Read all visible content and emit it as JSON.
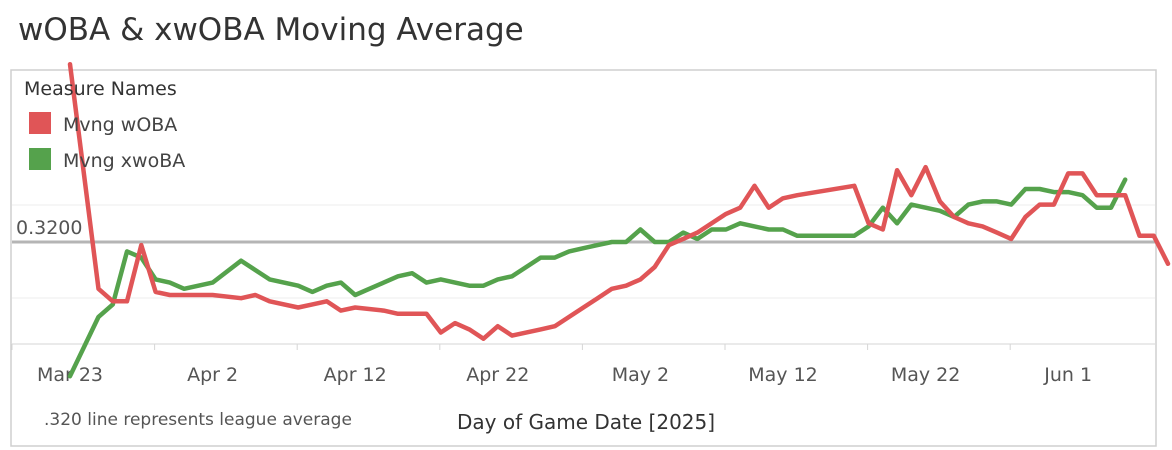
{
  "title": "wOBA & xwOBA Moving Average",
  "legend": {
    "heading": "Measure Names",
    "items": [
      {
        "label": "Mvng wOBA",
        "color": "#e05557"
      },
      {
        "label": "Mvng xwoBA",
        "color": "#55a24c"
      }
    ]
  },
  "reference": {
    "label": "0.3200",
    "value": 0.32
  },
  "footnote": ".320 line represents league average",
  "chart_data": {
    "type": "line",
    "title": "wOBA & xwOBA Moving Average",
    "xlabel": "Day of Game Date [2025]",
    "ylabel": "",
    "x_ticks": [
      "Mar 23",
      "Apr 2",
      "Apr 12",
      "Apr 22",
      "May 2",
      "May 12",
      "May 22",
      "Jun 1"
    ],
    "ylim": [
      0.2692,
      0.3877
    ],
    "reference_line": 0.32,
    "grid": "horizontal",
    "legend_position": "top-left",
    "series": [
      {
        "name": "Mvng wOBA",
        "color": "#e05557",
        "points": [
          [
            "2025-03-23",
            0.377
          ],
          [
            "2025-03-25",
            0.305
          ],
          [
            "2025-03-26",
            0.301
          ],
          [
            "2025-03-27",
            0.301
          ],
          [
            "2025-03-28",
            0.319
          ],
          [
            "2025-03-29",
            0.304
          ],
          [
            "2025-03-30",
            0.303
          ],
          [
            "2025-03-31",
            0.303
          ],
          [
            "2025-04-02",
            0.303
          ],
          [
            "2025-04-04",
            0.302
          ],
          [
            "2025-04-05",
            0.303
          ],
          [
            "2025-04-06",
            0.301
          ],
          [
            "2025-04-08",
            0.299
          ],
          [
            "2025-04-09",
            0.3
          ],
          [
            "2025-04-10",
            0.301
          ],
          [
            "2025-04-11",
            0.298
          ],
          [
            "2025-04-12",
            0.299
          ],
          [
            "2025-04-14",
            0.298
          ],
          [
            "2025-04-15",
            0.297
          ],
          [
            "2025-04-16",
            0.297
          ],
          [
            "2025-04-17",
            0.297
          ],
          [
            "2025-04-18",
            0.291
          ],
          [
            "2025-04-19",
            0.294
          ],
          [
            "2025-04-20",
            0.292
          ],
          [
            "2025-04-21",
            0.289
          ],
          [
            "2025-04-22",
            0.293
          ],
          [
            "2025-04-23",
            0.29
          ],
          [
            "2025-04-25",
            0.292
          ],
          [
            "2025-04-26",
            0.293
          ],
          [
            "2025-04-27",
            0.296
          ],
          [
            "2025-04-28",
            0.299
          ],
          [
            "2025-04-29",
            0.302
          ],
          [
            "2025-04-30",
            0.305
          ],
          [
            "2025-05-01",
            0.306
          ],
          [
            "2025-05-02",
            0.308
          ],
          [
            "2025-05-03",
            0.312
          ],
          [
            "2025-05-04",
            0.319
          ],
          [
            "2025-05-05",
            0.321
          ],
          [
            "2025-05-06",
            0.323
          ],
          [
            "2025-05-07",
            0.326
          ],
          [
            "2025-05-08",
            0.329
          ],
          [
            "2025-05-09",
            0.331
          ],
          [
            "2025-05-10",
            0.338
          ],
          [
            "2025-05-11",
            0.331
          ],
          [
            "2025-05-12",
            0.334
          ],
          [
            "2025-05-13",
            0.335
          ],
          [
            "2025-05-17",
            0.338
          ],
          [
            "2025-05-18",
            0.326
          ],
          [
            "2025-05-19",
            0.324
          ],
          [
            "2025-05-20",
            0.343
          ],
          [
            "2025-05-21",
            0.335
          ],
          [
            "2025-05-22",
            0.344
          ],
          [
            "2025-05-23",
            0.333
          ],
          [
            "2025-05-24",
            0.328
          ],
          [
            "2025-05-25",
            0.326
          ],
          [
            "2025-05-26",
            0.325
          ],
          [
            "2025-05-27",
            0.323
          ],
          [
            "2025-05-28",
            0.321
          ],
          [
            "2025-05-29",
            0.328
          ],
          [
            "2025-05-30",
            0.332
          ],
          [
            "2025-05-31",
            0.332
          ],
          [
            "2025-06-01",
            0.342
          ],
          [
            "2025-06-02",
            0.342
          ],
          [
            "2025-06-03",
            0.335
          ],
          [
            "2025-06-04",
            0.335
          ],
          [
            "2025-06-05",
            0.335
          ],
          [
            "2025-06-06",
            0.322
          ],
          [
            "2025-06-07",
            0.322
          ],
          [
            "2025-06-08",
            0.313
          ]
        ]
      },
      {
        "name": "Mvng xwoBA",
        "color": "#55a24c",
        "points": [
          [
            "2025-03-23",
            0.277
          ],
          [
            "2025-03-25",
            0.296
          ],
          [
            "2025-03-26",
            0.3
          ],
          [
            "2025-03-27",
            0.317
          ],
          [
            "2025-03-28",
            0.315
          ],
          [
            "2025-03-29",
            0.308
          ],
          [
            "2025-03-30",
            0.307
          ],
          [
            "2025-03-31",
            0.305
          ],
          [
            "2025-04-02",
            0.307
          ],
          [
            "2025-04-04",
            0.314
          ],
          [
            "2025-04-05",
            0.311
          ],
          [
            "2025-04-06",
            0.308
          ],
          [
            "2025-04-08",
            0.306
          ],
          [
            "2025-04-09",
            0.304
          ],
          [
            "2025-04-10",
            0.306
          ],
          [
            "2025-04-11",
            0.307
          ],
          [
            "2025-04-12",
            0.303
          ],
          [
            "2025-04-14",
            0.307
          ],
          [
            "2025-04-15",
            0.309
          ],
          [
            "2025-04-16",
            0.31
          ],
          [
            "2025-04-17",
            0.307
          ],
          [
            "2025-04-18",
            0.308
          ],
          [
            "2025-04-19",
            0.307
          ],
          [
            "2025-04-20",
            0.306
          ],
          [
            "2025-04-21",
            0.306
          ],
          [
            "2025-04-22",
            0.308
          ],
          [
            "2025-04-23",
            0.309
          ],
          [
            "2025-04-25",
            0.315
          ],
          [
            "2025-04-26",
            0.315
          ],
          [
            "2025-04-27",
            0.317
          ],
          [
            "2025-04-28",
            0.318
          ],
          [
            "2025-04-29",
            0.319
          ],
          [
            "2025-04-30",
            0.32
          ],
          [
            "2025-05-01",
            0.32
          ],
          [
            "2025-05-02",
            0.324
          ],
          [
            "2025-05-03",
            0.32
          ],
          [
            "2025-05-04",
            0.32
          ],
          [
            "2025-05-05",
            0.323
          ],
          [
            "2025-05-06",
            0.321
          ],
          [
            "2025-05-07",
            0.324
          ],
          [
            "2025-05-08",
            0.324
          ],
          [
            "2025-05-09",
            0.326
          ],
          [
            "2025-05-10",
            0.325
          ],
          [
            "2025-05-11",
            0.324
          ],
          [
            "2025-05-12",
            0.324
          ],
          [
            "2025-05-13",
            0.322
          ],
          [
            "2025-05-17",
            0.322
          ],
          [
            "2025-05-18",
            0.325
          ],
          [
            "2025-05-19",
            0.331
          ],
          [
            "2025-05-20",
            0.326
          ],
          [
            "2025-05-21",
            0.332
          ],
          [
            "2025-05-22",
            0.331
          ],
          [
            "2025-05-23",
            0.33
          ],
          [
            "2025-05-24",
            0.328
          ],
          [
            "2025-05-25",
            0.332
          ],
          [
            "2025-05-26",
            0.333
          ],
          [
            "2025-05-27",
            0.333
          ],
          [
            "2025-05-28",
            0.332
          ],
          [
            "2025-05-29",
            0.337
          ],
          [
            "2025-05-30",
            0.337
          ],
          [
            "2025-05-31",
            0.336
          ],
          [
            "2025-06-01",
            0.336
          ],
          [
            "2025-06-02",
            0.335
          ],
          [
            "2025-06-03",
            0.331
          ],
          [
            "2025-06-04",
            0.331
          ],
          [
            "2025-06-05",
            0.34
          ]
        ]
      }
    ]
  }
}
